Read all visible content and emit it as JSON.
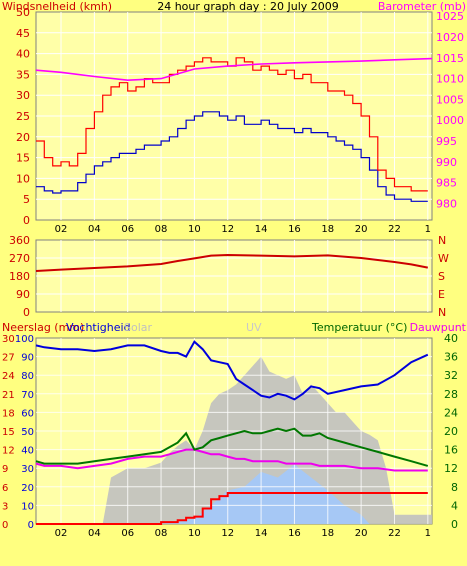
{
  "colors": {
    "background": "#ffff80",
    "plot_bg": "#ffffa8",
    "grid": "#ffffff",
    "axis_left": "#cc0000",
    "axis_right_top": "#ff00ff",
    "axis_temp": "#006600",
    "wind_gust": "#ff0000",
    "wind_avg": "#0000cc",
    "barometer": "#ff00ff",
    "direction": "#cc0000",
    "humidity": "#0000dd",
    "temperature": "#007700",
    "dewpoint": "#ee00ee",
    "rain": "#ff0000",
    "solar": "#c0c0c0",
    "uv": "#a0c8ff"
  },
  "chart_data": [
    {
      "type": "line",
      "title": "24 hour graph day : 20 July 2009",
      "ylabel": "Windsnelheid (kmh)",
      "y2label": "Barometer (mb)",
      "x_ticks": [
        "02",
        "04",
        "06",
        "08",
        "10",
        "12",
        "14",
        "16",
        "18",
        "20",
        "22",
        "1"
      ],
      "xlim": [
        0.5,
        24.25
      ],
      "ylim": [
        0,
        50
      ],
      "y_ticks": [
        "0",
        "5",
        "10",
        "15",
        "20",
        "25",
        "30",
        "35",
        "40",
        "45",
        "50"
      ],
      "y2lim": [
        976,
        1026
      ],
      "y2_ticks": [
        "980",
        "985",
        "990",
        "995",
        "1000",
        "1005",
        "1010",
        "1015",
        "1020",
        "1025"
      ],
      "grid": true,
      "series": [
        {
          "role": "gust",
          "x": [
            0.5,
            1,
            1.5,
            2,
            2.5,
            3,
            3.5,
            4,
            4.5,
            5,
            5.5,
            6,
            6.5,
            7,
            7.5,
            8,
            8.5,
            9,
            9.5,
            10,
            10.5,
            11,
            11.5,
            12,
            12.5,
            13,
            13.5,
            14,
            14.5,
            15,
            15.5,
            16,
            16.5,
            17,
            17.5,
            18,
            18.5,
            19,
            19.5,
            20,
            20.5,
            21,
            21.5,
            22,
            22.5,
            23,
            23.5,
            24
          ],
          "y": [
            19,
            15,
            13,
            14,
            13,
            16,
            22,
            26,
            30,
            32,
            33,
            31,
            32,
            34,
            33,
            33,
            35,
            36,
            37,
            38,
            39,
            38,
            38,
            37,
            39,
            38,
            36,
            37,
            36,
            35,
            36,
            34,
            35,
            33,
            33,
            31,
            31,
            30,
            28,
            25,
            20,
            12,
            10,
            8,
            8,
            7,
            7,
            7
          ]
        },
        {
          "role": "average",
          "x": [
            0.5,
            1,
            1.5,
            2,
            2.5,
            3,
            3.5,
            4,
            4.5,
            5,
            5.5,
            6,
            6.5,
            7,
            7.5,
            8,
            8.5,
            9,
            9.5,
            10,
            10.5,
            11,
            11.5,
            12,
            12.5,
            13,
            13.5,
            14,
            14.5,
            15,
            15.5,
            16,
            16.5,
            17,
            17.5,
            18,
            18.5,
            19,
            19.5,
            20,
            20.5,
            21,
            21.5,
            22,
            22.5,
            23,
            23.5,
            24
          ],
          "y": [
            8,
            7,
            6.5,
            7,
            7,
            9,
            11,
            13,
            14,
            15,
            16,
            16,
            17,
            18,
            18,
            19,
            20,
            22,
            24,
            25,
            26,
            26,
            25,
            24,
            25,
            23,
            23,
            24,
            23,
            22,
            22,
            21,
            22,
            21,
            21,
            20,
            19,
            18,
            17,
            15,
            12,
            8,
            6,
            5,
            5,
            4.5,
            4.5,
            4.5
          ]
        },
        {
          "role": "barometer",
          "axis": "right",
          "x": [
            0.5,
            2,
            4,
            6,
            8,
            10,
            12,
            14,
            16,
            18,
            20,
            22,
            24.25
          ],
          "y": [
            1012,
            1011.5,
            1010.5,
            1009.6,
            1010,
            1012.3,
            1013,
            1013.5,
            1013.8,
            1014,
            1014.2,
            1014.5,
            1014.8
          ]
        }
      ]
    },
    {
      "type": "line",
      "ylim": [
        0,
        360
      ],
      "y_ticks": [
        "360",
        "270",
        "180",
        "90",
        "0"
      ],
      "right_labels": [
        "N",
        "W",
        "S",
        "E",
        "N"
      ],
      "xlim": [
        0.5,
        24.25
      ],
      "grid": true,
      "series": [
        {
          "role": "direction",
          "x": [
            0.5,
            2,
            4,
            6,
            8,
            9,
            10,
            11,
            12,
            14,
            16,
            18,
            20,
            21,
            22,
            23,
            24
          ],
          "y": [
            205,
            212,
            220,
            228,
            240,
            255,
            268,
            282,
            285,
            282,
            278,
            283,
            270,
            260,
            250,
            238,
            222
          ]
        }
      ]
    },
    {
      "type": "line",
      "legend_left": [
        "Neerslag (mm)",
        "Vochtigheid",
        "Solar"
      ],
      "legend_center": "UV",
      "legend_right": [
        "Temperatuur (°C)",
        "Dauwpunt"
      ],
      "xlim": [
        0.5,
        24.25
      ],
      "y_rain_ticks": [
        "0",
        "3",
        "6",
        "9",
        "12",
        "15",
        "18",
        "21",
        "24",
        "27",
        "30"
      ],
      "y_rain_lim": [
        0,
        30
      ],
      "y_hum_ticks": [
        "0",
        "10",
        "20",
        "30",
        "40",
        "50",
        "60",
        "70",
        "80",
        "90",
        "100"
      ],
      "y_hum_lim": [
        0,
        100
      ],
      "y_temp_ticks": [
        "0",
        "4",
        "8",
        "12",
        "16",
        "20",
        "24",
        "28",
        "32",
        "36",
        "40"
      ],
      "y_temp_lim": [
        0,
        40
      ],
      "grid": true,
      "series": [
        {
          "role": "humidity",
          "x": [
            0.5,
            1,
            2,
            3,
            4,
            5,
            6,
            7,
            8,
            8.5,
            9,
            9.5,
            10,
            10.5,
            11,
            11.5,
            12,
            12.5,
            13,
            13.5,
            14,
            14.5,
            15,
            15.5,
            16,
            16.5,
            17,
            17.5,
            18,
            19,
            20,
            21,
            22,
            23,
            24
          ],
          "y": [
            96,
            95,
            94,
            94,
            93,
            94,
            96,
            96,
            93,
            92,
            92,
            90,
            98,
            94,
            88,
            87,
            86,
            78,
            75,
            72,
            69,
            68,
            70,
            69,
            67,
            70,
            74,
            73,
            70,
            72,
            74,
            75,
            80,
            87,
            91
          ]
        },
        {
          "role": "temperature",
          "x": [
            0.5,
            1,
            2,
            3,
            4,
            5,
            6,
            7,
            8,
            8.5,
            9,
            9.5,
            10,
            10.5,
            11,
            11.5,
            12,
            12.5,
            13,
            13.5,
            14,
            14.5,
            15,
            15.5,
            16,
            16.5,
            17,
            17.5,
            18,
            19,
            20,
            21,
            22,
            23,
            24
          ],
          "y": [
            13.5,
            13,
            13,
            13,
            13.5,
            14,
            14.5,
            15,
            15.5,
            16.5,
            17.5,
            19.5,
            16,
            16.5,
            18,
            18.5,
            19,
            19.5,
            20,
            19.5,
            19.5,
            20,
            20.5,
            20,
            20.5,
            19,
            19,
            19.5,
            18.5,
            17.5,
            16.5,
            15.5,
            14.5,
            13.5,
            12.5
          ]
        },
        {
          "role": "dewpoint",
          "x": [
            0.5,
            1,
            2,
            3,
            4,
            5,
            6,
            7,
            8,
            8.5,
            9,
            9.5,
            10,
            10.5,
            11,
            11.5,
            12,
            12.5,
            13,
            13.5,
            14,
            14.5,
            15,
            15.5,
            16,
            16.5,
            17,
            17.5,
            18,
            19,
            20,
            21,
            22,
            23,
            24
          ],
          "y": [
            13,
            12.5,
            12.5,
            12,
            12.5,
            13,
            14,
            14.5,
            14.5,
            15,
            15.5,
            16,
            16,
            15.5,
            15,
            15,
            14.5,
            14,
            14,
            13.5,
            13.5,
            13.5,
            13.5,
            13,
            13,
            13,
            13,
            12.5,
            12.5,
            12.5,
            12,
            12,
            11.5,
            11.5,
            11.5
          ]
        },
        {
          "role": "rain",
          "x": [
            0.5,
            5,
            6,
            8,
            9,
            9.5,
            10,
            10.5,
            11,
            11.5,
            12,
            20,
            24
          ],
          "y": [
            0,
            0,
            0,
            0.3,
            0.6,
            1,
            1.2,
            2.5,
            4,
            4.5,
            5,
            5,
            5
          ]
        },
        {
          "role": "solar_band",
          "x": [
            0.5,
            4.5,
            5,
            6,
            7,
            8,
            8.5,
            9,
            9.5,
            10,
            10.5,
            11,
            11.5,
            12,
            12.5,
            13,
            13.5,
            14,
            14.5,
            15,
            15.5,
            16,
            16.5,
            17,
            17.5,
            18,
            18.5,
            19,
            19.5,
            20,
            20.5,
            21,
            21.5,
            22,
            24.25
          ],
          "y": [
            0,
            0,
            25,
            30,
            30,
            33,
            38,
            42,
            45,
            40,
            50,
            65,
            70,
            72,
            75,
            80,
            85,
            90,
            82,
            80,
            78,
            80,
            70,
            75,
            70,
            65,
            60,
            60,
            55,
            50,
            48,
            45,
            30,
            5,
            5
          ]
        },
        {
          "role": "uv_band",
          "x": [
            0.5,
            8,
            9,
            10,
            11,
            12,
            13,
            14,
            15,
            16,
            17,
            18,
            19,
            20,
            20.5,
            24.25
          ],
          "y": [
            0,
            0,
            1,
            3,
            10,
            18,
            20,
            28,
            25,
            32,
            25,
            18,
            10,
            5,
            0,
            0
          ]
        }
      ]
    }
  ]
}
